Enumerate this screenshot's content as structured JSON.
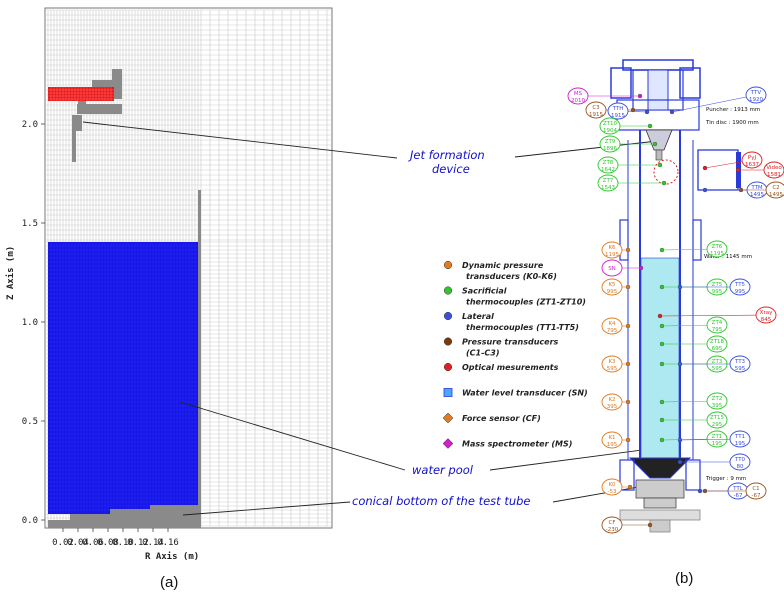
{
  "panel_a": {
    "label": "(a)",
    "x_axis_label": "R Axis (m)",
    "z_axis_label": "Z Axis (m)",
    "x_ticks": [
      "0.02",
      "0.04",
      "0.06",
      "0.08",
      "0.10",
      "0.12",
      "0.14",
      "0.16"
    ],
    "z_ticks": [
      "0.0",
      "0.5",
      "1.0",
      "1.5",
      "2.0"
    ],
    "colors": {
      "pool": "#1414e6",
      "jet": "#e81818",
      "device": "#8a8a8a"
    }
  },
  "callouts": {
    "jet_line1": "Jet formation",
    "jet_line2": "device",
    "water_pool": "water pool",
    "conical": "conical bottom of the test tube"
  },
  "panel_b": {
    "label": "(b)",
    "legend": [
      {
        "line1": "Dynamic pressure",
        "line2": "transducers (K0-K6)",
        "color": "#e07a20",
        "marker": "circle"
      },
      {
        "line1": "Sacrificial",
        "line2": "thermocouples (ZT1-ZT10)",
        "color": "#2ec82e",
        "marker": "circle"
      },
      {
        "line1": "Lateral",
        "line2": "thermocouples (TT1-TT5)",
        "color": "#3a4ee0",
        "marker": "circle"
      },
      {
        "line1": "Pressure transducers",
        "line2": "(C1-C3)",
        "color": "#7a3a10",
        "marker": "circle"
      },
      {
        "line1": "Optical mesurements",
        "line2": "",
        "color": "#e02020",
        "marker": "circle"
      },
      {
        "line1": "Water level transducer (SN)",
        "line2": "",
        "color": "#4aa8ff",
        "marker": "square"
      },
      {
        "line1": "Force sensor (CF)",
        "line2": "",
        "color": "#e07a20",
        "marker": "diamond"
      },
      {
        "line1": "Mass spectrometer (MS)",
        "line2": "",
        "color": "#d020d0",
        "marker": "diamond"
      }
    ],
    "notes": {
      "puncher": "Puncher : 1913 mm",
      "tin_disc": "Tin disc : 1900 mm",
      "water": "Water : 1145 mm",
      "trigger": "Trigger : 9 mm"
    },
    "bubbles": [
      {
        "id": "MS",
        "a": "MS",
        "b": "2010",
        "color": "#d020d0"
      },
      {
        "id": "C3",
        "a": "C3",
        "b": "1915",
        "color": "#9a5520"
      },
      {
        "id": "TTH",
        "a": "TTH",
        "b": "1915",
        "color": "#3a4ee0"
      },
      {
        "id": "TTV",
        "a": "TTV",
        "b": "1920",
        "color": "#3a4ee0"
      },
      {
        "id": "ZT10",
        "a": "ZT10",
        "b": "1904",
        "color": "#2ec82e"
      },
      {
        "id": "ZT9",
        "a": "ZT9",
        "b": "1896",
        "color": "#2ec82e"
      },
      {
        "id": "ZT8",
        "a": "ZT8",
        "b": "1642",
        "color": "#2ec82e"
      },
      {
        "id": "ZT7",
        "a": "ZT7",
        "b": "1543",
        "color": "#2ec82e"
      },
      {
        "id": "PyJ",
        "a": "PyJ",
        "b": "1637",
        "color": "#e02020"
      },
      {
        "id": "Video",
        "a": "Video",
        "b": "1581",
        "color": "#e02020"
      },
      {
        "id": "TTM",
        "a": "TTM",
        "b": "1495",
        "color": "#3a4ee0"
      },
      {
        "id": "C2",
        "a": "C2",
        "b": "1495",
        "color": "#9a5520"
      },
      {
        "id": "K6",
        "a": "K6",
        "b": "1195",
        "color": "#e07a20"
      },
      {
        "id": "ZT6",
        "a": "ZT6",
        "b": "1195",
        "color": "#2ec82e"
      },
      {
        "id": "SN",
        "a": "SN",
        "b": "",
        "color": "#d020d0"
      },
      {
        "id": "K5",
        "a": "K5",
        "b": "995",
        "color": "#e07a20"
      },
      {
        "id": "ZT5",
        "a": "ZT5",
        "b": "995",
        "color": "#2ec82e"
      },
      {
        "id": "TT5",
        "a": "TT5",
        "b": "995",
        "color": "#3a4ee0"
      },
      {
        "id": "Xray",
        "a": "Xray",
        "b": "845",
        "color": "#e02020"
      },
      {
        "id": "K4",
        "a": "K4",
        "b": "795",
        "color": "#e07a20"
      },
      {
        "id": "ZT4",
        "a": "ZT4",
        "b": "795",
        "color": "#2ec82e"
      },
      {
        "id": "ZT18",
        "a": "ZT18",
        "b": "695",
        "color": "#2ec82e"
      },
      {
        "id": "K3",
        "a": "K3",
        "b": "595",
        "color": "#e07a20"
      },
      {
        "id": "ZT3",
        "a": "ZT3",
        "b": "595",
        "color": "#2ec82e"
      },
      {
        "id": "TT3",
        "a": "TT3",
        "b": "595",
        "color": "#3a4ee0"
      },
      {
        "id": "K2",
        "a": "K2",
        "b": "395",
        "color": "#e07a20"
      },
      {
        "id": "ZT2",
        "a": "ZT2",
        "b": "395",
        "color": "#2ec82e"
      },
      {
        "id": "ZT15",
        "a": "ZT15",
        "b": "295",
        "color": "#2ec82e"
      },
      {
        "id": "K1",
        "a": "K1",
        "b": "195",
        "color": "#e07a20"
      },
      {
        "id": "ZT1",
        "a": "ZT1",
        "b": "195",
        "color": "#2ec82e"
      },
      {
        "id": "TT1",
        "a": "TT1",
        "b": "195",
        "color": "#3a4ee0"
      },
      {
        "id": "TT0",
        "a": "TT0",
        "b": "80",
        "color": "#3a4ee0"
      },
      {
        "id": "K0",
        "a": "K0",
        "b": "-53",
        "color": "#e07a20"
      },
      {
        "id": "TTL",
        "a": "TTL",
        "b": "-67",
        "color": "#3a4ee0"
      },
      {
        "id": "C1",
        "a": "C1",
        "b": "-67",
        "color": "#9a5520"
      },
      {
        "id": "CF",
        "a": "CF",
        "b": "-230",
        "color": "#9a5520"
      }
    ]
  }
}
